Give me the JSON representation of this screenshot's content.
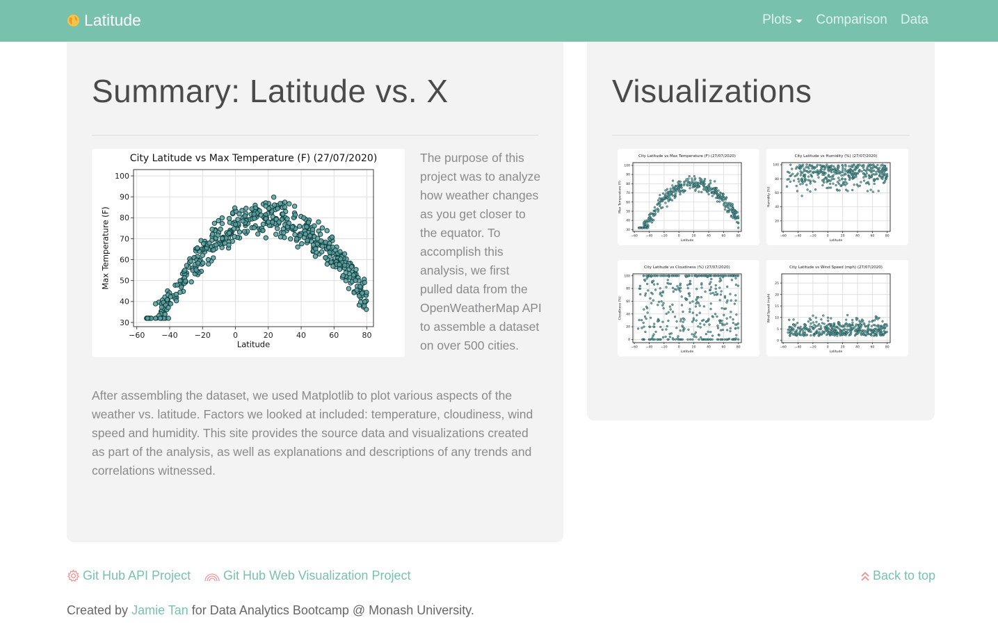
{
  "navbar": {
    "brand": "Latitude",
    "links": [
      {
        "label": "Plots"
      },
      {
        "label": "Comparison"
      },
      {
        "label": "Data"
      }
    ]
  },
  "summary": {
    "title": "Summary: Latitude vs. X",
    "side_text": "The purpose of this project was to analyze how weather changes as you get closer to the equator. To accomplish this analysis, we first pulled data from the OpenWeatherMap API to assemble a dataset on over 500 cities.",
    "body_text": "After assembling the dataset, we used Matplotlib to plot various aspects of the weather vs. latitude. Factors we looked at included: temperature, cloudiness, wind speed and humidity. This site provides the source data and visualizations created as part of the analysis, as well as explanations and descriptions of any trends and correlations witnessed."
  },
  "visualizations": {
    "title": "Visualizations"
  },
  "charts": [
    {
      "id": "main",
      "title": "City Latitude vs Max Temperature (F) (27/07/2020)",
      "xlabel": "Latitude",
      "ylabel": "Max Temperature (F)",
      "xlim": [
        -62,
        84
      ],
      "ylim": [
        28,
        103
      ],
      "xticks": [
        -60,
        -40,
        -20,
        0,
        20,
        40,
        60,
        80
      ],
      "yticks": [
        30,
        40,
        50,
        60,
        70,
        80,
        90,
        100
      ],
      "pattern": "temp"
    },
    {
      "id": "t1",
      "title": "City Latitude vs Max Temperature (F) (27/07/2020)",
      "xlabel": "Latitude",
      "ylabel": "Max Temperature (F)",
      "xlim": [
        -62,
        84
      ],
      "ylim": [
        28,
        103
      ],
      "xticks": [
        -60,
        -40,
        -20,
        0,
        20,
        40,
        60,
        80
      ],
      "yticks": [
        30,
        40,
        50,
        60,
        70,
        80,
        90,
        100
      ],
      "pattern": "temp"
    },
    {
      "id": "t2",
      "title": "City Latitude vs Humidity (%) (27/07/2020)",
      "xlabel": "Latitude",
      "ylabel": "Humidity (%)",
      "xlim": [
        -62,
        84
      ],
      "ylim": [
        5,
        103
      ],
      "xticks": [
        -60,
        -40,
        -20,
        0,
        20,
        40,
        60,
        80
      ],
      "yticks": [
        20,
        40,
        60,
        80,
        100
      ],
      "pattern": "humidity"
    },
    {
      "id": "t3",
      "title": "City Latitude vs Cloudiness (%) (27/07/2020)",
      "xlabel": "Latitude",
      "ylabel": "Cloudiness (%)",
      "xlim": [
        -62,
        84
      ],
      "ylim": [
        -5,
        103
      ],
      "xticks": [
        -60,
        -40,
        -20,
        0,
        20,
        40,
        60,
        80
      ],
      "yticks": [
        0,
        20,
        40,
        60,
        80,
        100
      ],
      "pattern": "cloud"
    },
    {
      "id": "t4",
      "title": "City Latitude vs Wind Speed (mph) (27/07/2020)",
      "xlabel": "Latitude",
      "ylabel": "Wind Speed (mph)",
      "xlim": [
        -62,
        84
      ],
      "ylim": [
        -1,
        29
      ],
      "xticks": [
        -60,
        -40,
        -20,
        0,
        20,
        40,
        60,
        80
      ],
      "yticks": [
        0,
        5,
        10,
        15,
        20,
        25
      ],
      "pattern": "wind"
    }
  ],
  "footer": {
    "link1": "Git Hub API Project",
    "link2": "Git Hub Web Visualization Project",
    "back_to_top": "Back to top",
    "credit_prefix": "Created by ",
    "credit_name": "Jamie Tan",
    "credit_suffix": " for Data Analytics Bootcamp @ Monash University."
  },
  "colors": {
    "accent": "#78c2ad",
    "marker_fill": "#5f9f9f",
    "marker_edge": "#0b3b3b",
    "icon_pink": "#f3969a"
  }
}
